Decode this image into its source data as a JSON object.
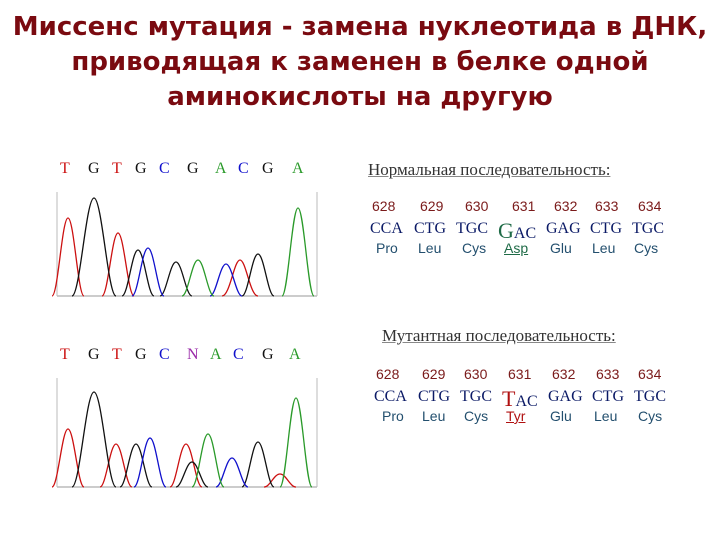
{
  "title": {
    "line1": "Миссенс мутация - замена нуклеотида в ДНК,",
    "line2": "приводящая к заменен в белке одной",
    "line3": "аминокислоты на другую"
  },
  "colors": {
    "A": "#2a9a2a",
    "C": "#1010cc",
    "G": "#111111",
    "T": "#cc1010",
    "N": "#9a2aa8"
  },
  "normal": {
    "header": "Нормальная   последовательность:",
    "bases": [
      "T",
      "G",
      "T",
      "G",
      "C",
      "G",
      "A",
      "C",
      "G",
      "A"
    ],
    "numbers": [
      "628",
      "629",
      "630",
      "631",
      "632",
      "633",
      "634"
    ],
    "codons": {
      "c628": "CCA",
      "c629": "CTG",
      "c630": "TGC",
      "c631_first": "G",
      "c631_rest": "AC",
      "c632": "GAG",
      "c633": "CTG",
      "c634": "TGC"
    },
    "amino_acids": [
      "Pro",
      "Leu",
      "Cys",
      "Asp",
      "Glu",
      "Leu",
      "Cys"
    ]
  },
  "mutant": {
    "header": "Мутантная   последовательность:",
    "bases": [
      "T",
      "G",
      "T",
      "G",
      "C",
      "N",
      "A",
      "C",
      "G",
      "A"
    ],
    "numbers": [
      "628",
      "629",
      "630",
      "631",
      "632",
      "633",
      "634"
    ],
    "codons": {
      "c628": "CCA",
      "c629": "CTG",
      "c630": "TGC",
      "c631_first": "T",
      "c631_rest": "AC",
      "c632": "GAG",
      "c633": "CTG",
      "c634": "TGC"
    },
    "amino_acids": [
      "Pro",
      "Leu",
      "Cys",
      "Tyr",
      "Glu",
      "Leu",
      "Cys"
    ]
  }
}
